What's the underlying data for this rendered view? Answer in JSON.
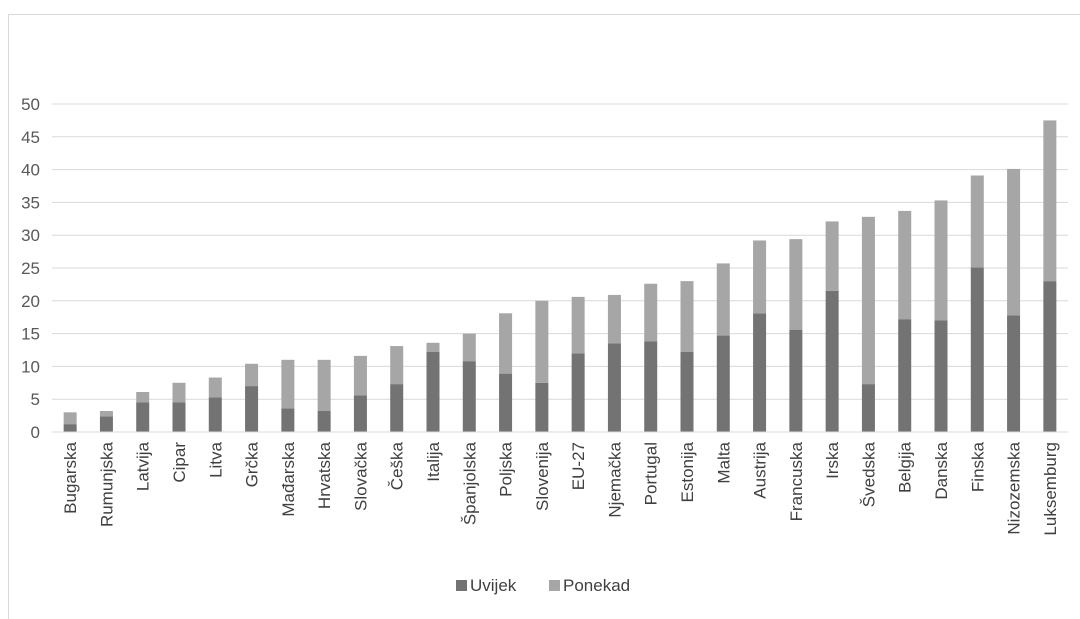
{
  "chart_data": {
    "type": "bar",
    "stacked": true,
    "categories": [
      "Bugarska",
      "Rumunjska",
      "Latvija",
      "Cipar",
      "Litva",
      "Grčka",
      "Mađarska",
      "Hrvatska",
      "Slovačka",
      "Češka",
      "Italija",
      "Španjolska",
      "Poljska",
      "Slovenija",
      "EU-27",
      "Njemačka",
      "Portugal",
      "Estonija",
      "Malta",
      "Austrija",
      "Francuska",
      "Irska",
      "Švedska",
      "Belgija",
      "Danska",
      "Finska",
      "Nizozemska",
      "Luksemburg"
    ],
    "series": [
      {
        "name": "Uvijek",
        "color": "#737373",
        "values": [
          1.2,
          2.4,
          4.5,
          4.5,
          5.3,
          7.0,
          3.6,
          3.2,
          5.6,
          7.3,
          12.2,
          10.8,
          8.9,
          7.5,
          12.0,
          13.5,
          13.8,
          12.2,
          14.7,
          18.1,
          15.6,
          21.5,
          7.3,
          17.2,
          17.0,
          25.1,
          17.8,
          23.0
        ]
      },
      {
        "name": "Ponekad",
        "color": "#a6a6a6",
        "values": [
          1.8,
          0.8,
          1.6,
          3.0,
          3.0,
          3.4,
          7.4,
          7.8,
          6.0,
          5.8,
          1.4,
          4.2,
          9.2,
          12.5,
          8.6,
          7.4,
          8.8,
          10.8,
          11.0,
          11.1,
          13.8,
          10.6,
          25.5,
          16.5,
          18.3,
          14.0,
          22.3,
          24.5
        ]
      }
    ],
    "ylim": [
      0,
      50
    ],
    "yticks": [
      0,
      5,
      10,
      15,
      20,
      25,
      30,
      35,
      40,
      45,
      50
    ],
    "grid": true,
    "legend_position": "bottom"
  }
}
